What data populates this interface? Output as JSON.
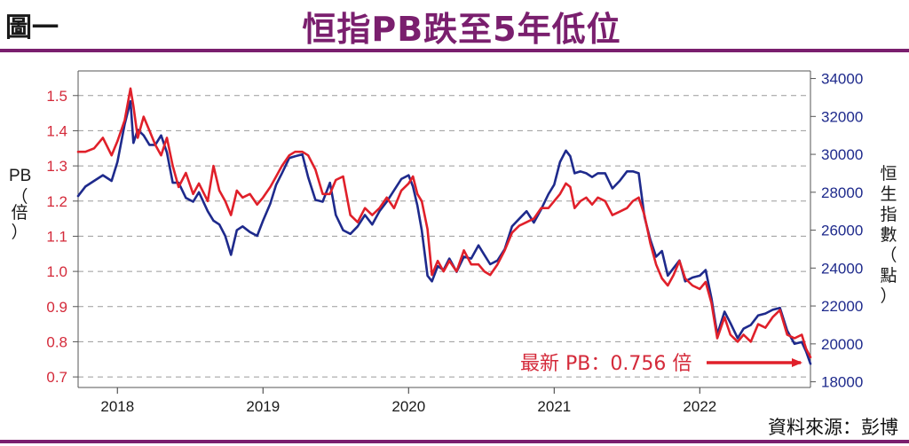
{
  "header": {
    "figure_label": "圖一",
    "title": "恒指PB跌至5年低位"
  },
  "footer": {
    "source": "資料來源：彭博"
  },
  "chart_data": {
    "type": "line",
    "title": "恒指PB跌至5年低位",
    "ylabel_left": "PB（倍）",
    "ylabel_right": "恒生指數（點）",
    "x_ticks": [
      "2018",
      "2019",
      "2020",
      "2021",
      "2022"
    ],
    "x_range": [
      2017.73,
      2022.76
    ],
    "y_left_ticks": [
      "1.5",
      "1.4",
      "1.3",
      "1.2",
      "1.1",
      "1.0",
      "0.9",
      "0.8",
      "0.7"
    ],
    "y_left_range": [
      0.67,
      1.57
    ],
    "y_right_ticks": [
      "34000",
      "32000",
      "30000",
      "28000",
      "26000",
      "24000",
      "22000",
      "20000",
      "18000"
    ],
    "y_right_range": [
      17700,
      34400
    ],
    "grid": true,
    "colors": {
      "pb": "#e0202a",
      "hsi": "#1e2a8c",
      "accent": "#7a1f6e",
      "left_axis_text": "#d42a3a",
      "right_axis_text": "#1e2a8c"
    },
    "annotation": {
      "text": "最新 PB：0.756 倍"
    },
    "series": [
      {
        "key": "pb",
        "axis": "left",
        "x": [
          2017.73,
          2017.78,
          2017.84,
          2017.9,
          2017.96,
          2018.0,
          2018.05,
          2018.09,
          2018.11,
          2018.14,
          2018.18,
          2018.22,
          2018.26,
          2018.3,
          2018.34,
          2018.38,
          2018.42,
          2018.47,
          2018.52,
          2018.56,
          2018.62,
          2018.66,
          2018.7,
          2018.74,
          2018.78,
          2018.82,
          2018.86,
          2018.91,
          2018.96,
          2019.0,
          2019.05,
          2019.09,
          2019.13,
          2019.18,
          2019.22,
          2019.27,
          2019.31,
          2019.36,
          2019.41,
          2019.46,
          2019.5,
          2019.55,
          2019.6,
          2019.65,
          2019.7,
          2019.75,
          2019.8,
          2019.85,
          2019.9,
          2019.95,
          2020.0,
          2020.03,
          2020.06,
          2020.09,
          2020.13,
          2020.16,
          2020.2,
          2020.24,
          2020.28,
          2020.33,
          2020.38,
          2020.43,
          2020.48,
          2020.52,
          2020.56,
          2020.61,
          2020.66,
          2020.71,
          2020.76,
          2020.81,
          2020.86,
          2020.91,
          2020.96,
          2021.0,
          2021.04,
          2021.08,
          2021.11,
          2021.14,
          2021.18,
          2021.22,
          2021.26,
          2021.3,
          2021.35,
          2021.4,
          2021.45,
          2021.5,
          2021.54,
          2021.58,
          2021.62,
          2021.66,
          2021.7,
          2021.74,
          2021.78,
          2021.82,
          2021.86,
          2021.9,
          2021.95,
          2022.0,
          2022.04,
          2022.08,
          2022.12,
          2022.17,
          2022.21,
          2022.26,
          2022.3,
          2022.35,
          2022.4,
          2022.45,
          2022.5,
          2022.55,
          2022.6,
          2022.65,
          2022.7,
          2022.73,
          2022.76
        ],
        "values": [
          1.34,
          1.34,
          1.35,
          1.38,
          1.33,
          1.37,
          1.43,
          1.52,
          1.47,
          1.38,
          1.44,
          1.4,
          1.36,
          1.33,
          1.38,
          1.3,
          1.24,
          1.28,
          1.22,
          1.25,
          1.2,
          1.3,
          1.23,
          1.2,
          1.16,
          1.23,
          1.21,
          1.22,
          1.19,
          1.21,
          1.24,
          1.27,
          1.3,
          1.33,
          1.34,
          1.34,
          1.33,
          1.29,
          1.22,
          1.22,
          1.26,
          1.27,
          1.16,
          1.14,
          1.18,
          1.16,
          1.18,
          1.21,
          1.18,
          1.23,
          1.25,
          1.27,
          1.22,
          1.2,
          1.12,
          0.99,
          1.03,
          1.0,
          1.03,
          1.0,
          1.06,
          1.02,
          1.02,
          1.0,
          0.99,
          1.02,
          1.06,
          1.11,
          1.13,
          1.14,
          1.15,
          1.18,
          1.18,
          1.2,
          1.22,
          1.25,
          1.24,
          1.18,
          1.2,
          1.21,
          1.19,
          1.21,
          1.2,
          1.16,
          1.17,
          1.18,
          1.2,
          1.21,
          1.16,
          1.08,
          1.02,
          0.98,
          0.96,
          0.99,
          1.03,
          0.98,
          0.96,
          0.95,
          0.97,
          0.91,
          0.81,
          0.87,
          0.82,
          0.8,
          0.82,
          0.8,
          0.85,
          0.84,
          0.87,
          0.89,
          0.82,
          0.81,
          0.82,
          0.78,
          0.756
        ]
      },
      {
        "key": "hsi",
        "axis": "right",
        "x": [
          2017.73,
          2017.78,
          2017.84,
          2017.9,
          2017.96,
          2018.0,
          2018.05,
          2018.09,
          2018.11,
          2018.14,
          2018.18,
          2018.22,
          2018.26,
          2018.3,
          2018.34,
          2018.38,
          2018.42,
          2018.47,
          2018.52,
          2018.56,
          2018.62,
          2018.66,
          2018.7,
          2018.74,
          2018.78,
          2018.82,
          2018.86,
          2018.91,
          2018.96,
          2019.0,
          2019.05,
          2019.09,
          2019.13,
          2019.18,
          2019.22,
          2019.27,
          2019.31,
          2019.36,
          2019.41,
          2019.46,
          2019.5,
          2019.55,
          2019.6,
          2019.65,
          2019.7,
          2019.75,
          2019.8,
          2019.85,
          2019.9,
          2019.95,
          2020.0,
          2020.03,
          2020.06,
          2020.09,
          2020.13,
          2020.16,
          2020.2,
          2020.24,
          2020.28,
          2020.33,
          2020.38,
          2020.43,
          2020.48,
          2020.52,
          2020.56,
          2020.61,
          2020.66,
          2020.71,
          2020.76,
          2020.81,
          2020.86,
          2020.91,
          2020.96,
          2021.0,
          2021.04,
          2021.08,
          2021.11,
          2021.14,
          2021.18,
          2021.22,
          2021.26,
          2021.3,
          2021.35,
          2021.4,
          2021.45,
          2021.5,
          2021.54,
          2021.58,
          2021.62,
          2021.66,
          2021.7,
          2021.74,
          2021.78,
          2021.82,
          2021.86,
          2021.9,
          2021.95,
          2022.0,
          2022.04,
          2022.08,
          2022.12,
          2022.17,
          2022.21,
          2022.26,
          2022.3,
          2022.35,
          2022.4,
          2022.45,
          2022.5,
          2022.55,
          2022.6,
          2022.65,
          2022.7,
          2022.73,
          2022.76
        ],
        "values": [
          27800,
          28300,
          28600,
          28900,
          28600,
          29600,
          31600,
          32800,
          30600,
          31300,
          31000,
          30500,
          30500,
          31000,
          30100,
          28500,
          28500,
          27700,
          27500,
          28000,
          27000,
          26500,
          26300,
          25700,
          24700,
          26000,
          26200,
          25900,
          25700,
          26500,
          27400,
          28400,
          29000,
          29800,
          29900,
          30000,
          28800,
          27600,
          27500,
          28500,
          26800,
          26000,
          25800,
          26200,
          26800,
          26300,
          27000,
          27500,
          28100,
          28700,
          28900,
          28300,
          27300,
          26000,
          23600,
          23300,
          24100,
          23900,
          24500,
          23800,
          24600,
          24500,
          25200,
          24700,
          24200,
          24400,
          25000,
          26200,
          26600,
          27000,
          26400,
          27100,
          27900,
          28400,
          29600,
          30200,
          29900,
          29000,
          29100,
          29000,
          28800,
          29000,
          29000,
          28200,
          28600,
          29100,
          29100,
          29000,
          26700,
          25500,
          24600,
          24900,
          23600,
          24000,
          24400,
          23300,
          23500,
          23600,
          23900,
          22400,
          20500,
          21700,
          21100,
          20300,
          20800,
          21000,
          21500,
          21600,
          21800,
          21900,
          20700,
          20000,
          20100,
          19600,
          18950
        ]
      }
    ]
  }
}
